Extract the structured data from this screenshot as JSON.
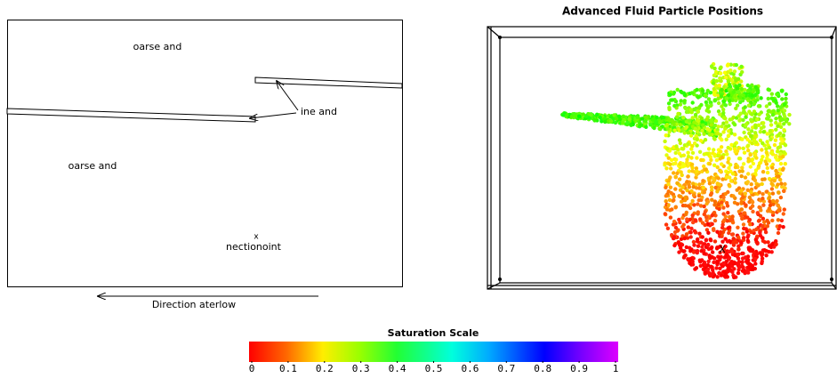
{
  "left_panel": {
    "labels": {
      "coarse_top": "oarse and",
      "coarse_bottom": "oarse and",
      "fine": "ine and",
      "point_marker": "x",
      "point_label": "nectionoint",
      "direction": "Direction aterlow"
    }
  },
  "right_panel": {
    "title": "Advanced Fluid Particle Positions",
    "marker": "X"
  },
  "colorbar": {
    "title": "Saturation Scale",
    "range": [
      0,
      1
    ],
    "ticks": [
      0,
      0.1,
      0.2,
      0.3,
      0.4,
      0.5,
      0.6,
      0.7,
      0.8,
      0.9,
      1
    ]
  }
}
